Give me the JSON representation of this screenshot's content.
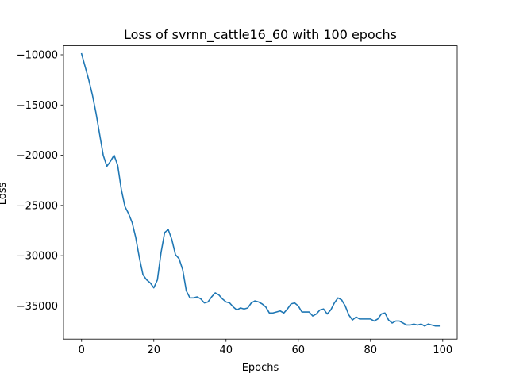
{
  "chart_data": {
    "type": "line",
    "title": "Loss of svrnn_cattle16_60 with 100 epochs",
    "xlabel": "Epochs",
    "ylabel": "Loss",
    "xlim": [
      -5,
      104
    ],
    "ylim": [
      -38300,
      -9100
    ],
    "xticks": [
      0,
      20,
      40,
      60,
      80,
      100
    ],
    "xtick_labels": [
      "0",
      "20",
      "40",
      "60",
      "80",
      "100"
    ],
    "yticks": [
      -10000,
      -15000,
      -20000,
      -25000,
      -30000,
      -35000
    ],
    "ytick_labels": [
      "−10000",
      "−15000",
      "−20000",
      "−25000",
      "−30000",
      "−35000"
    ],
    "grid": false,
    "series": [
      {
        "color": "#1f77b4",
        "x": [
          0,
          1,
          2,
          3,
          4,
          5,
          6,
          7,
          8,
          9,
          10,
          11,
          12,
          13,
          14,
          15,
          16,
          17,
          18,
          19,
          20,
          21,
          22,
          23,
          24,
          25,
          26,
          27,
          28,
          29,
          30,
          31,
          32,
          33,
          34,
          35,
          36,
          37,
          38,
          39,
          40,
          41,
          42,
          43,
          44,
          45,
          46,
          47,
          48,
          49,
          50,
          51,
          52,
          53,
          54,
          55,
          56,
          57,
          58,
          59,
          60,
          61,
          62,
          63,
          64,
          65,
          66,
          67,
          68,
          69,
          70,
          71,
          72,
          73,
          74,
          75,
          76,
          77,
          78,
          79,
          80,
          81,
          82,
          83,
          84,
          85,
          86,
          87,
          88,
          89,
          90,
          91,
          92,
          93,
          94,
          95,
          96,
          97,
          98,
          99
        ],
        "values": [
          -9900,
          -11200,
          -12500,
          -14000,
          -15800,
          -17900,
          -20000,
          -21100,
          -20600,
          -20000,
          -21000,
          -23400,
          -25100,
          -25800,
          -26700,
          -28200,
          -30200,
          -31900,
          -32400,
          -32700,
          -33200,
          -32400,
          -29700,
          -27700,
          -27400,
          -28400,
          -29900,
          -30300,
          -31400,
          -33500,
          -34200,
          -34200,
          -34100,
          -34300,
          -34700,
          -34600,
          -34100,
          -33700,
          -33900,
          -34300,
          -34600,
          -34700,
          -35100,
          -35400,
          -35200,
          -35300,
          -35200,
          -34700,
          -34500,
          -34600,
          -34800,
          -35100,
          -35700,
          -35700,
          -35600,
          -35500,
          -35700,
          -35300,
          -34800,
          -34700,
          -35000,
          -35600,
          -35600,
          -35600,
          -36000,
          -35800,
          -35400,
          -35300,
          -35800,
          -35400,
          -34700,
          -34200,
          -34400,
          -35000,
          -35900,
          -36400,
          -36100,
          -36300,
          -36300,
          -36300,
          -36300,
          -36500,
          -36300,
          -35800,
          -35700,
          -36400,
          -36700,
          -36500,
          -36500,
          -36700,
          -36900,
          -36900,
          -36800,
          -36900,
          -36800,
          -37000,
          -36800,
          -36900,
          -37000,
          -37000
        ]
      }
    ]
  }
}
